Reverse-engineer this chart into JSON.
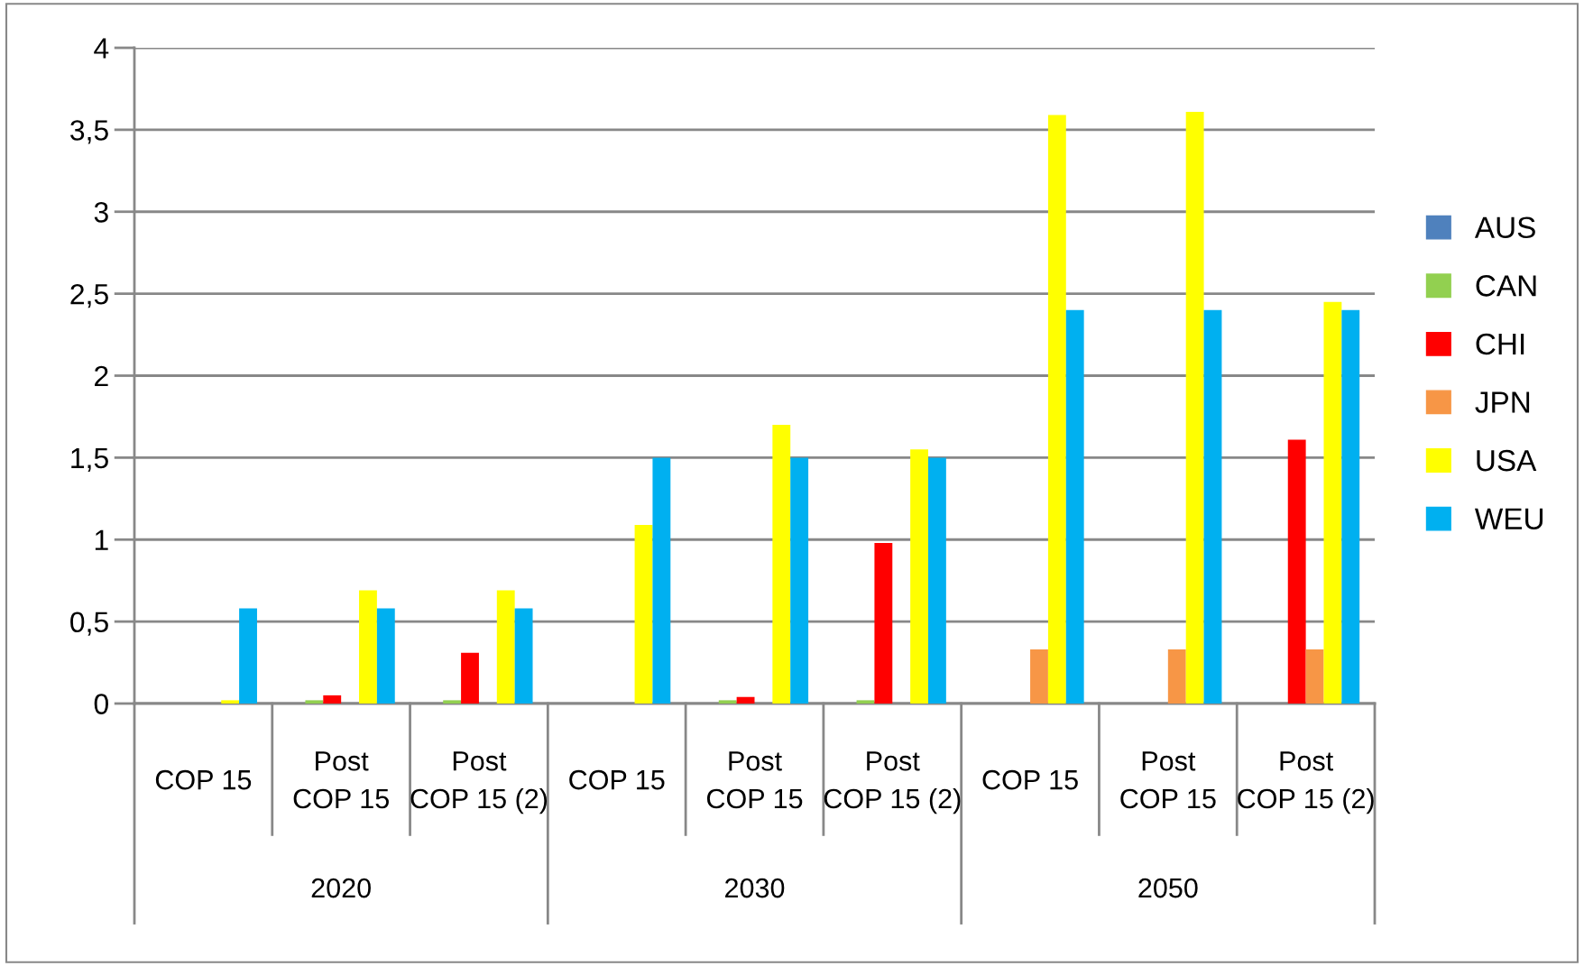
{
  "chart_data": {
    "type": "bar",
    "categories": [
      "COP 15",
      "Post COP 15",
      "Post COP 15 (2)",
      "COP 15",
      "Post COP 15",
      "Post COP 15 (2)",
      "COP 15",
      "Post COP 15",
      "Post COP 15 (2)"
    ],
    "series": [
      {
        "name": "AUS",
        "color": "#4f81bd",
        "values": [
          0,
          0,
          0,
          0,
          0,
          0,
          0,
          0,
          0
        ]
      },
      {
        "name": "CAN",
        "color": "#92d050",
        "values": [
          0,
          0.02,
          0.02,
          0,
          0.02,
          0.02,
          0,
          0,
          0
        ]
      },
      {
        "name": "CHI",
        "color": "#ff0000",
        "values": [
          0,
          0.05,
          0.31,
          0,
          0.04,
          0.98,
          0,
          0,
          1.61
        ]
      },
      {
        "name": "JPN",
        "color": "#f79646",
        "values": [
          0,
          0,
          0,
          0,
          0,
          0,
          0.33,
          0.33,
          0.33
        ]
      },
      {
        "name": "USA",
        "color": "#ffff00",
        "values": [
          0.02,
          0.69,
          0.69,
          1.09,
          1.7,
          1.55,
          3.59,
          3.61,
          2.45
        ]
      },
      {
        "name": "WEU",
        "color": "#00b0f0",
        "values": [
          0.58,
          0.58,
          0.58,
          1.5,
          1.5,
          1.5,
          2.4,
          2.4,
          2.4
        ]
      }
    ],
    "annotations": [
      "2020",
      "2030",
      "2050"
    ],
    "ylim": [
      0,
      4
    ],
    "yticks": [
      0,
      {
        "value": 0.5,
        "label": "0,5"
      },
      1,
      {
        "value": 1.5,
        "label": "1,5"
      },
      2,
      {
        "value": 2.5,
        "label": "2,5"
      },
      3,
      {
        "value": 3.5,
        "label": "3,5"
      },
      4
    ],
    "grid": "y",
    "legend": "right"
  }
}
